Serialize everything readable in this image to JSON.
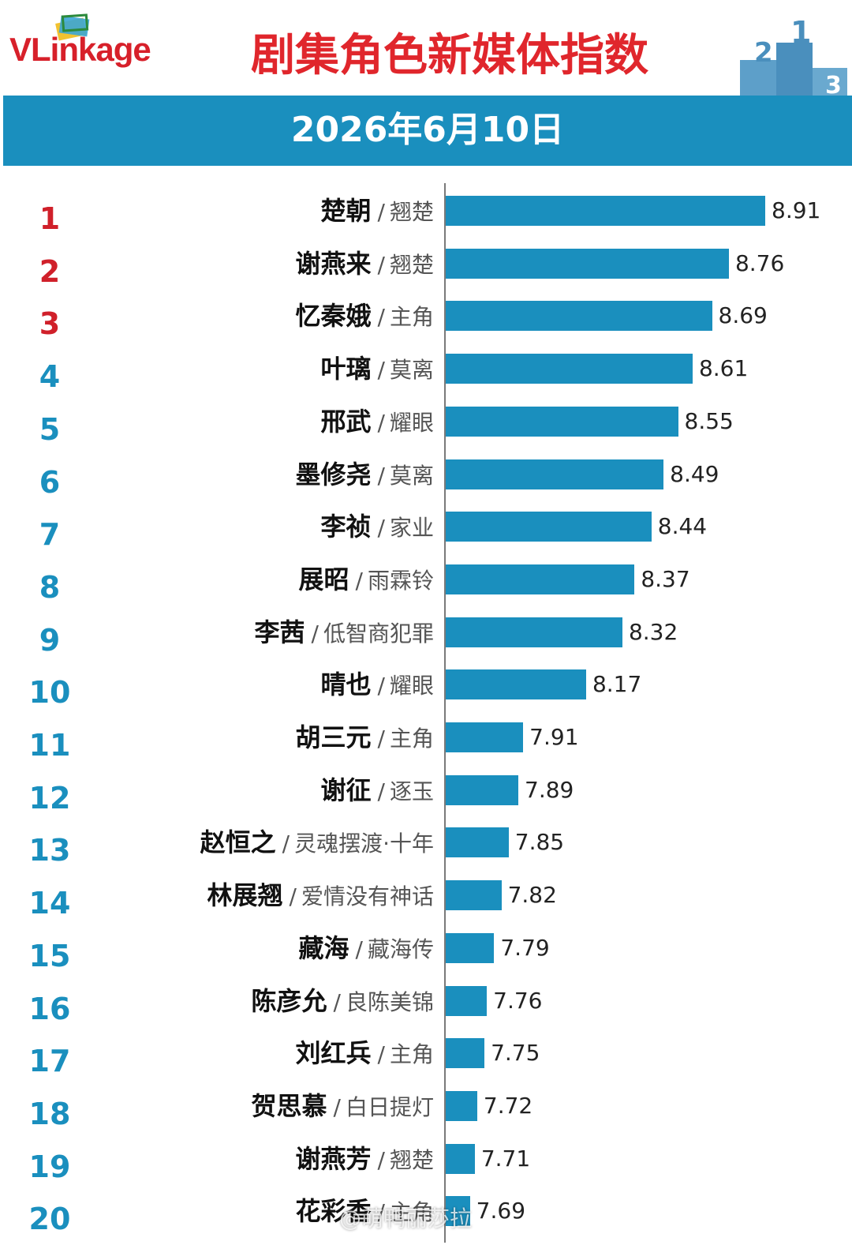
{
  "header": {
    "logo_vl": "VL",
    "logo_rest": "inkage",
    "title": "剧集角色新媒体指数",
    "date": "2026年6月10日"
  },
  "colors": {
    "bar": "#1a8fbe",
    "banner": "#1a8fbe",
    "title": "#e0262c",
    "rank_top3": "#d0202a",
    "rank_other": "#1a8fbe"
  },
  "icons": [
    "vlinkage-logo-mark-icon",
    "podium-icon"
  ],
  "chart_data": {
    "type": "bar",
    "orientation": "horizontal",
    "ranks": [
      "1",
      "2",
      "3",
      "4",
      "5",
      "6",
      "7",
      "8",
      "9",
      "10",
      "11",
      "12",
      "13",
      "14",
      "15",
      "16",
      "17",
      "18",
      "19",
      "20"
    ],
    "characters": [
      "楚朝",
      "谢燕来",
      "忆秦娥",
      "叶璃",
      "邢武",
      "墨修尧",
      "李祯",
      "展昭",
      "李茜",
      "晴也",
      "胡三元",
      "谢征",
      "赵恒之",
      "林展翘",
      "藏海",
      "陈彦允",
      "刘红兵",
      "贺思慕",
      "谢燕芳",
      "花彩香"
    ],
    "shows": [
      "翘楚",
      "翘楚",
      "主角",
      "莫离",
      "耀眼",
      "莫离",
      "家业",
      "雨霖铃",
      "低智商犯罪",
      "耀眼",
      "主角",
      "逐玉",
      "灵魂摆渡·十年",
      "爱情没有神话",
      "藏海传",
      "良陈美锦",
      "主角",
      "白日提灯",
      "翘楚",
      "主角"
    ],
    "separator": "/",
    "values": [
      8.91,
      8.76,
      8.69,
      8.61,
      8.55,
      8.49,
      8.44,
      8.37,
      8.32,
      8.17,
      7.91,
      7.89,
      7.85,
      7.82,
      7.79,
      7.76,
      7.75,
      7.72,
      7.71,
      7.69
    ],
    "value_labels": [
      "8.91",
      "8.76",
      "8.69",
      "8.61",
      "8.55",
      "8.49",
      "8.44",
      "8.37",
      "8.32",
      "8.17",
      "7.91",
      "7.89",
      "7.85",
      "7.82",
      "7.79",
      "7.76",
      "7.75",
      "7.72",
      "7.71",
      "7.69"
    ],
    "xlim": [
      7.59,
      8.91
    ],
    "grid": false,
    "legend": "none"
  },
  "watermark": "@萌鸭丽莎拉"
}
